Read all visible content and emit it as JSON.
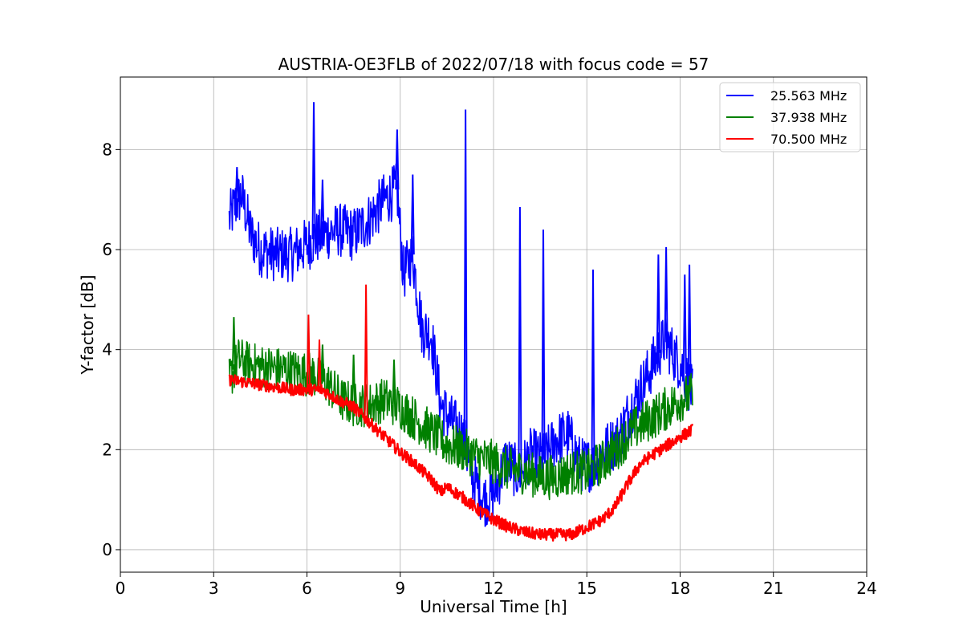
{
  "chart_data": {
    "type": "line",
    "title": "AUSTRIA-OE3FLB of 2022/07/18 with focus code = 57",
    "xlabel": "Universal Time [h]",
    "ylabel": "Y-factor [dB]",
    "xlim": [
      0,
      24
    ],
    "ylim": [
      -0.45,
      9.45
    ],
    "xticks": [
      0,
      3,
      6,
      9,
      12,
      15,
      18,
      21,
      24
    ],
    "yticks": [
      0,
      2,
      4,
      6,
      8
    ],
    "grid": true,
    "legend_position": "top-right",
    "series": [
      {
        "name": "25.563 MHz",
        "color": "#0000ff",
        "x": [
          3.5,
          3.7,
          3.9,
          4.2,
          4.5,
          5.0,
          5.5,
          6.0,
          6.2,
          6.5,
          7.0,
          7.5,
          8.0,
          8.5,
          8.9,
          9.1,
          9.4,
          9.7,
          10.0,
          10.3,
          10.6,
          11.0,
          11.3,
          11.7,
          12.0,
          12.4,
          12.8,
          13.2,
          13.6,
          14.0,
          14.4,
          14.8,
          15.2,
          15.6,
          16.0,
          16.4,
          16.8,
          17.2,
          17.5,
          17.8,
          18.1,
          18.4
        ],
        "y": [
          6.6,
          6.9,
          7.1,
          6.3,
          6.0,
          5.9,
          5.9,
          6.1,
          6.2,
          6.3,
          6.4,
          6.3,
          6.6,
          7.0,
          7.2,
          5.5,
          5.9,
          4.4,
          4.3,
          2.9,
          2.6,
          2.3,
          1.5,
          1.0,
          1.1,
          1.8,
          1.5,
          1.9,
          1.8,
          2.2,
          2.3,
          1.7,
          1.7,
          2.0,
          2.2,
          2.8,
          3.3,
          3.8,
          4.2,
          3.9,
          3.6,
          3.1
        ],
        "spikes": [
          [
            3.75,
            7.65
          ],
          [
            6.22,
            8.95
          ],
          [
            6.5,
            7.4
          ],
          [
            8.9,
            8.4
          ],
          [
            9.4,
            7.5
          ],
          [
            11.1,
            8.8
          ],
          [
            12.85,
            6.85
          ],
          [
            13.6,
            6.4
          ],
          [
            15.2,
            5.6
          ],
          [
            17.3,
            5.9
          ],
          [
            17.55,
            6.05
          ],
          [
            18.15,
            5.5
          ],
          [
            18.3,
            5.7
          ]
        ]
      },
      {
        "name": "37.938 MHz",
        "color": "#008000",
        "x": [
          3.5,
          3.8,
          4.2,
          4.7,
          5.2,
          5.7,
          6.2,
          6.7,
          7.1,
          7.5,
          8.0,
          8.5,
          9.0,
          9.5,
          10.0,
          10.5,
          11.0,
          11.5,
          12.0,
          12.5,
          13.0,
          13.5,
          14.0,
          14.5,
          15.0,
          15.5,
          16.0,
          16.5,
          17.0,
          17.5,
          18.0,
          18.4
        ],
        "y": [
          3.4,
          3.8,
          3.7,
          3.65,
          3.6,
          3.55,
          3.5,
          3.3,
          3.0,
          2.9,
          2.9,
          3.0,
          2.85,
          2.6,
          2.35,
          2.1,
          2.0,
          1.85,
          1.75,
          1.6,
          1.55,
          1.45,
          1.45,
          1.55,
          1.55,
          1.75,
          2.05,
          2.4,
          2.6,
          2.8,
          3.0,
          3.1
        ],
        "spikes": [
          [
            3.65,
            4.65
          ],
          [
            6.5,
            4.1
          ],
          [
            7.5,
            3.9
          ],
          [
            8.8,
            3.8
          ]
        ]
      },
      {
        "name": "70.500 MHz",
        "color": "#ff0000",
        "x": [
          3.5,
          4.0,
          4.5,
          5.0,
          5.5,
          6.0,
          6.5,
          7.0,
          7.5,
          8.0,
          8.5,
          9.0,
          9.5,
          10.0,
          10.3,
          10.5,
          11.0,
          11.5,
          12.0,
          12.5,
          13.0,
          13.5,
          14.0,
          14.5,
          15.0,
          15.5,
          15.9,
          16.3,
          16.7,
          17.0,
          17.5,
          18.0,
          18.4
        ],
        "y": [
          3.4,
          3.35,
          3.3,
          3.25,
          3.2,
          3.2,
          3.2,
          3.0,
          2.85,
          2.55,
          2.25,
          1.95,
          1.7,
          1.4,
          1.15,
          1.25,
          1.05,
          0.8,
          0.6,
          0.45,
          0.35,
          0.3,
          0.3,
          0.3,
          0.45,
          0.6,
          0.85,
          1.3,
          1.7,
          1.85,
          2.05,
          2.25,
          2.4
        ],
        "spikes": [
          [
            6.05,
            4.7
          ],
          [
            7.9,
            5.3
          ],
          [
            6.4,
            4.2
          ]
        ]
      }
    ]
  }
}
